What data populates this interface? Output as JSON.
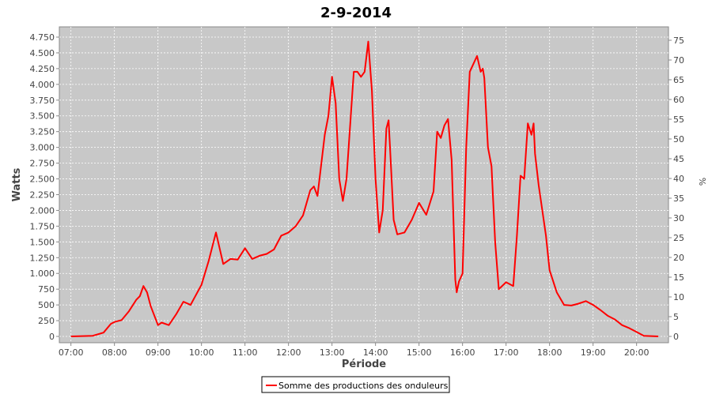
{
  "chart_data": {
    "type": "line",
    "title": "2-9-2014",
    "x_label": "Période",
    "y_label": "Watts",
    "y2_label": "%",
    "x": [
      "07:00",
      "07:30",
      "07:45",
      "07:55",
      "08:00",
      "08:10",
      "08:20",
      "08:30",
      "08:35",
      "08:40",
      "08:45",
      "08:50",
      "09:00",
      "09:05",
      "09:15",
      "09:25",
      "09:35",
      "09:45",
      "10:00",
      "10:10",
      "10:20",
      "10:30",
      "10:40",
      "10:50",
      "11:00",
      "11:10",
      "11:20",
      "11:30",
      "11:40",
      "11:50",
      "12:00",
      "12:10",
      "12:20",
      "12:30",
      "12:35",
      "12:40",
      "12:50",
      "12:55",
      "13:00",
      "13:05",
      "13:10",
      "13:15",
      "13:20",
      "13:30",
      "13:35",
      "13:40",
      "13:45",
      "13:50",
      "13:55",
      "14:00",
      "14:05",
      "14:10",
      "14:15",
      "14:18",
      "14:20",
      "14:25",
      "14:30",
      "14:40",
      "14:50",
      "15:00",
      "15:10",
      "15:20",
      "15:25",
      "15:30",
      "15:35",
      "15:40",
      "15:45",
      "15:50",
      "15:52",
      "15:55",
      "16:00",
      "16:05",
      "16:10",
      "16:20",
      "16:25",
      "16:28",
      "16:30",
      "16:35",
      "16:40",
      "16:45",
      "16:50",
      "17:00",
      "17:10",
      "17:15",
      "17:20",
      "17:25",
      "17:30",
      "17:35",
      "17:38",
      "17:40",
      "17:45",
      "17:55",
      "18:00",
      "18:10",
      "18:20",
      "18:30",
      "18:40",
      "18:50",
      "19:00",
      "19:10",
      "19:20",
      "19:30",
      "19:40",
      "19:50",
      "20:00",
      "20:10",
      "20:30"
    ],
    "series": [
      {
        "name": "Somme des productions des onduleurs",
        "color": "#ff0000",
        "values": [
          0,
          10,
          60,
          200,
          230,
          260,
          400,
          580,
          640,
          800,
          700,
          480,
          180,
          220,
          180,
          350,
          550,
          500,
          820,
          1200,
          1650,
          1150,
          1230,
          1220,
          1400,
          1230,
          1280,
          1310,
          1380,
          1600,
          1650,
          1750,
          1920,
          2320,
          2380,
          2230,
          3200,
          3500,
          4120,
          3700,
          2500,
          2150,
          2500,
          4200,
          4200,
          4120,
          4200,
          4680,
          3900,
          2500,
          1650,
          2000,
          3300,
          3430,
          3000,
          1850,
          1620,
          1650,
          1850,
          2120,
          1930,
          2300,
          3250,
          3150,
          3350,
          3450,
          2800,
          900,
          700,
          870,
          1000,
          3000,
          4200,
          4450,
          4200,
          4250,
          4100,
          3000,
          2700,
          1500,
          750,
          860,
          800,
          1600,
          2550,
          2500,
          3380,
          3200,
          3380,
          2900,
          2400,
          1600,
          1050,
          700,
          500,
          490,
          520,
          560,
          500,
          420,
          330,
          270,
          180,
          130,
          70,
          10,
          0
        ]
      }
    ],
    "xlim": [
      "06:44",
      "20:44"
    ],
    "xticks": [
      "07:00",
      "08:00",
      "09:00",
      "10:00",
      "11:00",
      "12:00",
      "13:00",
      "14:00",
      "15:00",
      "16:00",
      "17:00",
      "18:00",
      "19:00",
      "20:00"
    ],
    "ylim": [
      -100,
      4913
    ],
    "yticks": [
      0,
      250,
      500,
      750,
      {
        "value": 1000,
        "label": "1.000"
      },
      {
        "value": 1250,
        "label": "1.250"
      },
      {
        "value": 1500,
        "label": "1.500"
      },
      {
        "value": 1750,
        "label": "1.750"
      },
      {
        "value": 2000,
        "label": "2.000"
      },
      {
        "value": 2250,
        "label": "2.250"
      },
      {
        "value": 2500,
        "label": "2.500"
      },
      {
        "value": 2750,
        "label": "2.750"
      },
      {
        "value": 3000,
        "label": "3.000"
      },
      {
        "value": 3250,
        "label": "3.250"
      },
      {
        "value": 3500,
        "label": "3.500"
      },
      {
        "value": 3750,
        "label": "3.750"
      },
      {
        "value": 4000,
        "label": "4.000"
      },
      {
        "value": 4250,
        "label": "4.250"
      },
      {
        "value": 4500,
        "label": "4.500"
      },
      {
        "value": 4750,
        "label": "4.750"
      }
    ],
    "y2lim": [
      -1.6,
      78.4
    ],
    "y2ticks": [
      0,
      5,
      10,
      15,
      20,
      25,
      30,
      35,
      40,
      45,
      50,
      55,
      60,
      65,
      70,
      75
    ],
    "grid": true,
    "background": "#c8c8c8"
  }
}
